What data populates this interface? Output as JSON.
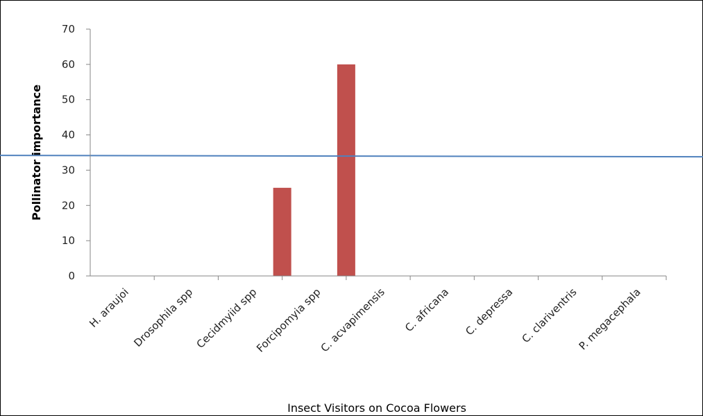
{
  "chart_data": {
    "type": "bar",
    "title": "",
    "xlabel": "Insect Visitors on Cocoa Flowers",
    "ylabel": "Pollinator importance",
    "categories": [
      "H. araujoi",
      "Drosophila spp",
      "Cecidmyiid spp",
      "Forcipomyia spp",
      "C. acvapimensis",
      "C. africana",
      "C. depressa",
      "C. clariventris",
      "P. megacephala"
    ],
    "series": [
      {
        "values": [
          0,
          0,
          0,
          25,
          60,
          0,
          0,
          0,
          0
        ],
        "color": "#c0504d"
      }
    ],
    "reference_line": {
      "value": 34,
      "color": "#4f81bd"
    },
    "ylim": [
      0,
      70
    ],
    "yticks": [
      0,
      10,
      20,
      30,
      40,
      50,
      60,
      70
    ],
    "grid": false,
    "legend": "none"
  }
}
